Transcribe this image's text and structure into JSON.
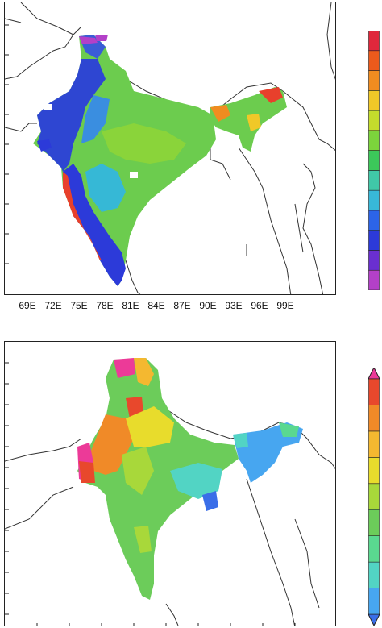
{
  "top_map": {
    "x_tick_labels": [
      "69E",
      "72E",
      "75E",
      "78E",
      "81E",
      "84E",
      "87E",
      "90E",
      "93E",
      "96E",
      "99E"
    ]
  },
  "top_colorbar": {
    "colors": [
      "#b340c8",
      "#6a2fd0",
      "#2c3ad9",
      "#2c64e8",
      "#38b8d8",
      "#40c8a8",
      "#3cc85a",
      "#7cd43c",
      "#c4dc2c",
      "#f0c828",
      "#f08c20",
      "#ec5a1c",
      "#e0283c"
    ]
  },
  "bottom_colorbar": {
    "colors": [
      "#3a6ee8",
      "#47a6f0",
      "#52d4c4",
      "#5ad890",
      "#6ccc5a",
      "#a8d83a",
      "#e8dc2c",
      "#f4b830",
      "#f08a28",
      "#e8482c",
      "#ec3a98"
    ]
  }
}
